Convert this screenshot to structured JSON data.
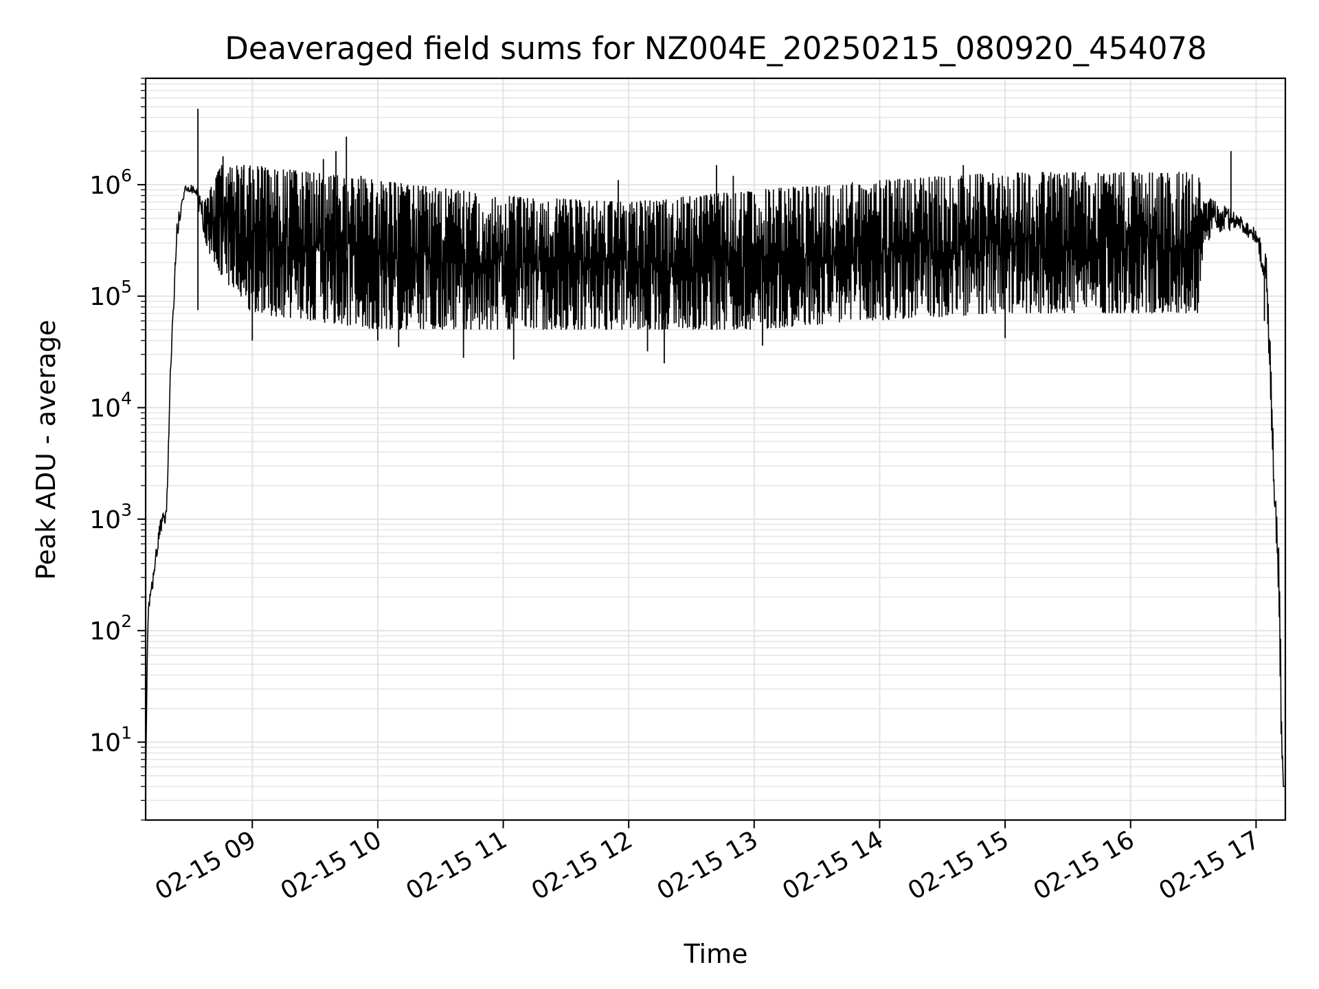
{
  "chart_data": {
    "type": "line",
    "title": "Deaveraged field sums for NZ004E_20250215_080920_454078",
    "xlabel": "Time",
    "ylabel": "Peak ADU - average",
    "yscale": "log",
    "xlim": [
      "2025-02-15 08:09",
      "2025-02-15 17:14"
    ],
    "ylim": [
      2,
      9000000
    ],
    "x_ticks": [
      {
        "x": "2025-02-15 09:00",
        "label": "02-15 09"
      },
      {
        "x": "2025-02-15 10:00",
        "label": "02-15 10"
      },
      {
        "x": "2025-02-15 11:00",
        "label": "02-15 11"
      },
      {
        "x": "2025-02-15 12:00",
        "label": "02-15 12"
      },
      {
        "x": "2025-02-15 13:00",
        "label": "02-15 13"
      },
      {
        "x": "2025-02-15 14:00",
        "label": "02-15 14"
      },
      {
        "x": "2025-02-15 15:00",
        "label": "02-15 15"
      },
      {
        "x": "2025-02-15 16:00",
        "label": "02-15 16"
      },
      {
        "x": "2025-02-15 17:00",
        "label": "02-15 17"
      }
    ],
    "y_ticks": [
      {
        "value": 10,
        "base": "10",
        "exp": "1"
      },
      {
        "value": 100,
        "base": "10",
        "exp": "2"
      },
      {
        "value": 1000,
        "base": "10",
        "exp": "3"
      },
      {
        "value": 10000,
        "base": "10",
        "exp": "4"
      },
      {
        "value": 100000,
        "base": "10",
        "exp": "5"
      },
      {
        "value": 1000000,
        "base": "10",
        "exp": "6"
      }
    ],
    "grid": true,
    "line_color": "#000000",
    "series": [
      {
        "envelope": [
          {
            "x": "2025-02-15 08:09",
            "low": 4,
            "high": 4
          },
          {
            "x": "2025-02-15 08:10",
            "low": 100,
            "high": 150
          },
          {
            "x": "2025-02-15 08:13",
            "low": 300,
            "high": 400
          },
          {
            "x": "2025-02-15 08:16",
            "low": 700,
            "high": 1000
          },
          {
            "x": "2025-02-15 08:19",
            "low": 1000,
            "high": 1300
          },
          {
            "x": "2025-02-15 08:21",
            "low": 20000,
            "high": 30000
          },
          {
            "x": "2025-02-15 08:24",
            "low": 300000,
            "high": 500000
          },
          {
            "x": "2025-02-15 08:28",
            "low": 900000,
            "high": 1000000
          },
          {
            "x": "2025-02-15 08:33",
            "low": 800000,
            "high": 1000000
          },
          {
            "x": "2025-02-15 08:37",
            "low": 300000,
            "high": 700000
          },
          {
            "x": "2025-02-15 08:45",
            "low": 150000,
            "high": 1500000
          },
          {
            "x": "2025-02-15 09:00",
            "low": 70000,
            "high": 1500000
          },
          {
            "x": "2025-02-15 10:00",
            "low": 50000,
            "high": 1100000
          },
          {
            "x": "2025-02-15 11:00",
            "low": 50000,
            "high": 800000
          },
          {
            "x": "2025-02-15 12:00",
            "low": 50000,
            "high": 700000
          },
          {
            "x": "2025-02-15 13:00",
            "low": 50000,
            "high": 900000
          },
          {
            "x": "2025-02-15 14:00",
            "low": 60000,
            "high": 1100000
          },
          {
            "x": "2025-02-15 15:00",
            "low": 70000,
            "high": 1300000
          },
          {
            "x": "2025-02-15 16:00",
            "low": 70000,
            "high": 1300000
          },
          {
            "x": "2025-02-15 16:32",
            "low": 70000,
            "high": 1300000
          },
          {
            "x": "2025-02-15 16:35",
            "low": 300000,
            "high": 800000
          },
          {
            "x": "2025-02-15 16:50",
            "low": 400000,
            "high": 600000
          },
          {
            "x": "2025-02-15 17:00",
            "low": 300000,
            "high": 400000
          },
          {
            "x": "2025-02-15 17:05",
            "low": 100000,
            "high": 250000
          },
          {
            "x": "2025-02-15 17:07",
            "low": 10000,
            "high": 30000
          },
          {
            "x": "2025-02-15 17:09",
            "low": 1000,
            "high": 2000
          },
          {
            "x": "2025-02-15 17:11",
            "low": 150,
            "high": 500
          },
          {
            "x": "2025-02-15 17:12",
            "low": 10,
            "high": 50
          },
          {
            "x": "2025-02-15 17:13",
            "low": 4,
            "high": 4
          },
          {
            "x": "2025-02-15 17:14",
            "low": 4,
            "high": 4
          }
        ],
        "spikes": [
          {
            "x": "2025-02-15 08:34",
            "value": 4800000
          },
          {
            "x": "2025-02-15 08:34",
            "value": 75000
          },
          {
            "x": "2025-02-15 08:46",
            "value": 1800000
          },
          {
            "x": "2025-02-15 08:56",
            "value": 1500000
          },
          {
            "x": "2025-02-15 09:00",
            "value": 40000
          },
          {
            "x": "2025-02-15 09:34",
            "value": 1700000
          },
          {
            "x": "2025-02-15 09:40",
            "value": 2000000
          },
          {
            "x": "2025-02-15 09:45",
            "value": 2700000
          },
          {
            "x": "2025-02-15 09:52",
            "value": 1200000
          },
          {
            "x": "2025-02-15 10:00",
            "value": 40000
          },
          {
            "x": "2025-02-15 10:10",
            "value": 35000
          },
          {
            "x": "2025-02-15 10:41",
            "value": 28000
          },
          {
            "x": "2025-02-15 11:05",
            "value": 27000
          },
          {
            "x": "2025-02-15 11:55",
            "value": 1100000
          },
          {
            "x": "2025-02-15 12:09",
            "value": 32000
          },
          {
            "x": "2025-02-15 12:17",
            "value": 25000
          },
          {
            "x": "2025-02-15 12:42",
            "value": 1500000
          },
          {
            "x": "2025-02-15 12:50",
            "value": 1200000
          },
          {
            "x": "2025-02-15 13:04",
            "value": 36000
          },
          {
            "x": "2025-02-15 14:40",
            "value": 1500000
          },
          {
            "x": "2025-02-15 15:00",
            "value": 42000
          },
          {
            "x": "2025-02-15 16:48",
            "value": 2000000
          },
          {
            "x": "2025-02-15 17:04",
            "value": 60000
          }
        ]
      }
    ]
  }
}
